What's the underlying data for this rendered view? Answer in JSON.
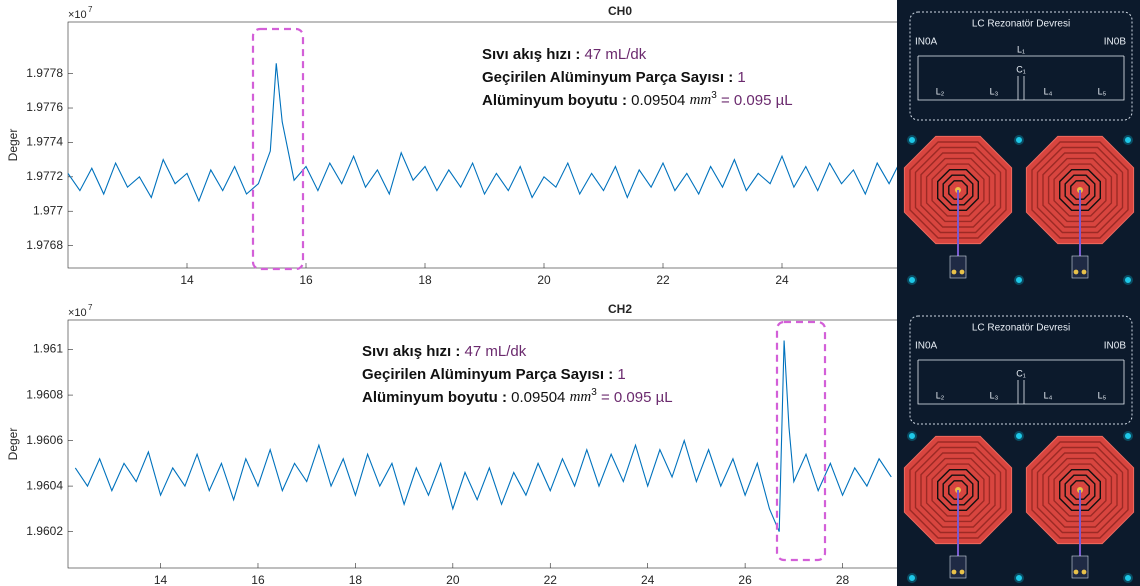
{
  "chart_data": [
    {
      "type": "line",
      "title": "CH0",
      "ylabel": "Deger",
      "y_multiplier": "×10",
      "y_exponent": "7",
      "xlim": [
        12,
        26
      ],
      "xticks": [
        14,
        16,
        18,
        20,
        22,
        24
      ],
      "ylim": [
        1.97667,
        1.9781
      ],
      "yticks": [
        1.9768,
        1.977,
        1.9772,
        1.9774,
        1.9776,
        1.9778
      ],
      "grid": false,
      "x": [
        12.0,
        12.2,
        12.4,
        12.6,
        12.8,
        13.0,
        13.2,
        13.4,
        13.6,
        13.8,
        14.0,
        14.2,
        14.4,
        14.6,
        14.8,
        15.0,
        15.2,
        15.4,
        15.5,
        15.6,
        15.8,
        16.0,
        16.2,
        16.4,
        16.6,
        16.8,
        17.0,
        17.2,
        17.4,
        17.6,
        17.8,
        18.0,
        18.2,
        18.4,
        18.6,
        18.8,
        19.0,
        19.2,
        19.4,
        19.6,
        19.8,
        20.0,
        20.2,
        20.4,
        20.6,
        20.8,
        21.0,
        21.2,
        21.4,
        21.6,
        21.8,
        22.0,
        22.2,
        22.4,
        22.6,
        22.8,
        23.0,
        23.2,
        23.4,
        23.6,
        23.8,
        24.0,
        24.2,
        24.4,
        24.6,
        24.8,
        25.0,
        25.2,
        25.4,
        25.6,
        25.8,
        26.0
      ],
      "series": [
        {
          "color": "#0072bd",
          "values": [
            1.97722,
            1.97712,
            1.97725,
            1.9771,
            1.97728,
            1.97714,
            1.9772,
            1.97708,
            1.9773,
            1.97716,
            1.97722,
            1.97706,
            1.97724,
            1.97712,
            1.97726,
            1.9771,
            1.97716,
            1.97735,
            1.97786,
            1.97752,
            1.97718,
            1.97726,
            1.97712,
            1.97728,
            1.97716,
            1.97732,
            1.97714,
            1.97724,
            1.9771,
            1.97734,
            1.97718,
            1.97726,
            1.97712,
            1.97724,
            1.97714,
            1.97728,
            1.9771,
            1.97722,
            1.97712,
            1.97726,
            1.97708,
            1.9772,
            1.97714,
            1.97728,
            1.9771,
            1.97722,
            1.97712,
            1.97726,
            1.97708,
            1.97724,
            1.97714,
            1.97728,
            1.97712,
            1.97722,
            1.9771,
            1.97726,
            1.97714,
            1.9773,
            1.97712,
            1.97722,
            1.97716,
            1.97732,
            1.97714,
            1.97726,
            1.97712,
            1.97728,
            1.97716,
            1.97724,
            1.9771,
            1.97728,
            1.97716,
            1.9773
          ]
        }
      ],
      "annotations": [
        {
          "label": "Sıvı akış hızı :",
          "value": "47 mL/dk"
        },
        {
          "label": "Geçirilen Alüminyum Parça Sayısı :",
          "value": "1"
        },
        {
          "label": "Alüminyum boyutu :",
          "number": "0.09504",
          "unit": "mm",
          "unit_exponent": "3",
          "value": "= 0.095 µL"
        }
      ]
    },
    {
      "type": "line",
      "title": "CH2",
      "ylabel": "Deger",
      "y_multiplier": "×10",
      "y_exponent": "7",
      "xlim": [
        12.1,
        29.2
      ],
      "xticks": [
        14,
        16,
        18,
        20,
        22,
        24,
        26,
        28
      ],
      "ylim": [
        1.96004,
        1.96113
      ],
      "yticks": [
        1.9602,
        1.9604,
        1.9606,
        1.9608,
        1.961
      ],
      "grid": false,
      "x": [
        12.25,
        12.5,
        12.75,
        13,
        13.25,
        13.5,
        13.75,
        14,
        14.25,
        14.5,
        14.75,
        15,
        15.25,
        15.5,
        15.75,
        16,
        16.25,
        16.5,
        16.75,
        17,
        17.25,
        17.5,
        17.75,
        18,
        18.25,
        18.5,
        18.75,
        19,
        19.25,
        19.5,
        19.75,
        20,
        20.25,
        20.5,
        20.75,
        21,
        21.25,
        21.5,
        21.75,
        22,
        22.25,
        22.5,
        22.75,
        23,
        23.25,
        23.5,
        23.75,
        24,
        24.25,
        24.5,
        24.75,
        25,
        25.25,
        25.5,
        25.75,
        26,
        26.25,
        26.5,
        26.7,
        26.8,
        26.9,
        27.0,
        27.25,
        27.5,
        27.75,
        28,
        28.25,
        28.5,
        28.75,
        29
      ],
      "series": [
        {
          "color": "#0072bd",
          "values": [
            1.96048,
            1.9604,
            1.96052,
            1.96038,
            1.9605,
            1.96042,
            1.96055,
            1.96036,
            1.96048,
            1.9604,
            1.96054,
            1.96038,
            1.9605,
            1.96034,
            1.96052,
            1.9604,
            1.96056,
            1.96038,
            1.9605,
            1.96042,
            1.96058,
            1.9604,
            1.96052,
            1.96036,
            1.96054,
            1.9604,
            1.9605,
            1.96032,
            1.96048,
            1.96036,
            1.9605,
            1.9603,
            1.96046,
            1.96034,
            1.96048,
            1.96032,
            1.96046,
            1.96036,
            1.9605,
            1.96038,
            1.96052,
            1.9604,
            1.96056,
            1.9604,
            1.96054,
            1.96042,
            1.96058,
            1.9604,
            1.96056,
            1.96044,
            1.9606,
            1.96042,
            1.96056,
            1.9604,
            1.96052,
            1.96036,
            1.9605,
            1.9603,
            1.9602,
            1.96104,
            1.96066,
            1.96042,
            1.96054,
            1.96038,
            1.9605,
            1.96036,
            1.96048,
            1.9604,
            1.96052,
            1.96044
          ]
        }
      ],
      "annotations": [
        {
          "label": "Sıvı akış hızı :",
          "value": "47 mL/dk"
        },
        {
          "label": "Geçirilen Alüminyum Parça Sayısı :",
          "value": "1"
        },
        {
          "label": "Alüminyum boyutu :",
          "number": "0.09504",
          "unit": "mm",
          "unit_exponent": "3",
          "value": "= 0.095 µL"
        }
      ]
    }
  ],
  "panels": [
    {
      "title": "LC Rezonatör Devresi",
      "left": "IN0A",
      "right": "IN0B",
      "components": [
        "L₁",
        "C₁",
        "L₂",
        "L₃",
        "L₄",
        "L₅"
      ]
    },
    {
      "title": "LC Rezonatör Devresi",
      "left": "IN0A",
      "right": "IN0B",
      "components": [
        "C₁",
        "L₂",
        "L₃",
        "L₄",
        "L₅"
      ]
    }
  ]
}
